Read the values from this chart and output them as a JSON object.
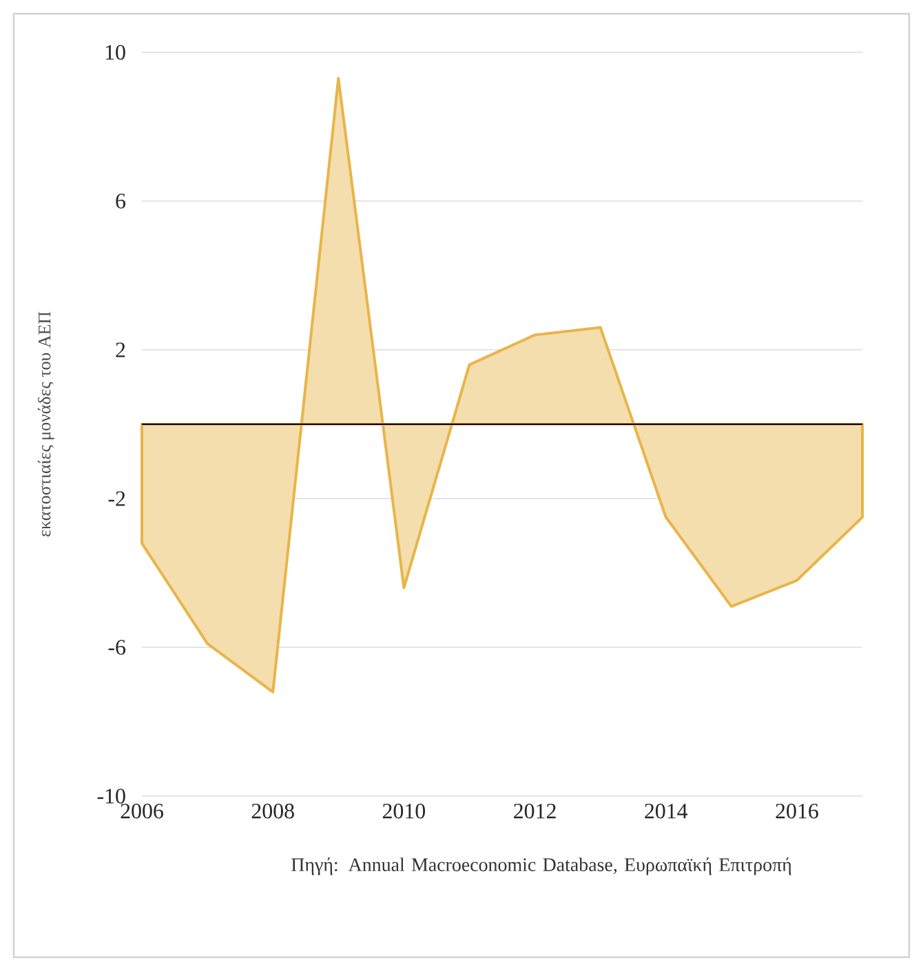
{
  "chart_data": {
    "type": "area",
    "ylabel": "εκατοστιαίες μονάδες του ΑΕΠ",
    "x": [
      2006,
      2007,
      2008,
      2009,
      2010,
      2011,
      2012,
      2013,
      2014,
      2015,
      2016,
      2017
    ],
    "series": [
      {
        "color": "#e8b54a",
        "values": [
          -3.2,
          -5.9,
          -7.2,
          9.3,
          -4.4,
          1.6,
          2.4,
          2.6,
          -2.5,
          -4.9,
          -4.2,
          -2.5
        ]
      }
    ],
    "xlim": [
      2006,
      2017
    ],
    "xticks": [
      2006,
      2008,
      2010,
      2012,
      2014,
      2016
    ],
    "ylim": [
      -10,
      10
    ],
    "yticks": [
      -10,
      -6,
      -2,
      2,
      6,
      10
    ],
    "grid": "y",
    "ref_lines": [
      {
        "axis": "y",
        "value": 0,
        "color": "#000000"
      }
    ],
    "annotations": [
      "Πηγή: Annual Macroeconomic Database, Ευρωπαϊκή Επιτροπή"
    ]
  }
}
